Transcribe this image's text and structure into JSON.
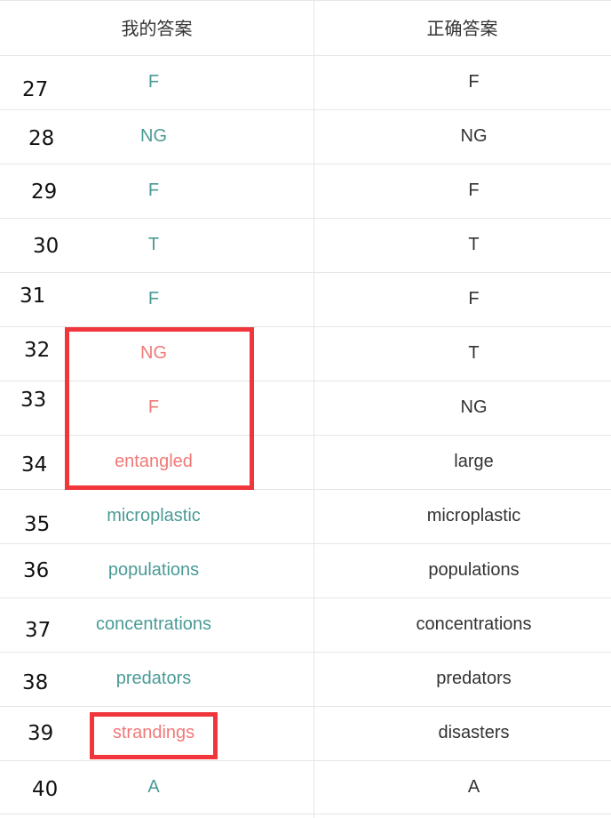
{
  "header": {
    "my_answer": "我的答案",
    "correct_answer": "正确答案"
  },
  "rows": [
    {
      "num": "27",
      "mine": "F",
      "correct": "F",
      "status": "correct"
    },
    {
      "num": "28",
      "mine": "NG",
      "correct": "NG",
      "status": "correct"
    },
    {
      "num": "29",
      "mine": "F",
      "correct": "F",
      "status": "correct"
    },
    {
      "num": "30",
      "mine": "T",
      "correct": "T",
      "status": "correct"
    },
    {
      "num": "31",
      "mine": "F",
      "correct": "F",
      "status": "correct"
    },
    {
      "num": "32",
      "mine": "NG",
      "correct": "T",
      "status": "wrong"
    },
    {
      "num": "33",
      "mine": "F",
      "correct": "NG",
      "status": "wrong"
    },
    {
      "num": "34",
      "mine": "entangled",
      "correct": "large",
      "status": "wrong"
    },
    {
      "num": "35",
      "mine": "microplastic",
      "correct": "microplastic",
      "status": "correct"
    },
    {
      "num": "36",
      "mine": "populations",
      "correct": "populations",
      "status": "correct"
    },
    {
      "num": "37",
      "mine": "concentrations",
      "correct": "concentrations",
      "status": "correct"
    },
    {
      "num": "38",
      "mine": "predators",
      "correct": "predators",
      "status": "correct"
    },
    {
      "num": "39",
      "mine": "strandings",
      "correct": "disasters",
      "status": "wrong"
    },
    {
      "num": "40",
      "mine": "A",
      "correct": "A",
      "status": "correct"
    }
  ],
  "colors": {
    "correct": "#4a9b96",
    "wrong": "#f07a78",
    "highlight_box": "#f0363a"
  }
}
